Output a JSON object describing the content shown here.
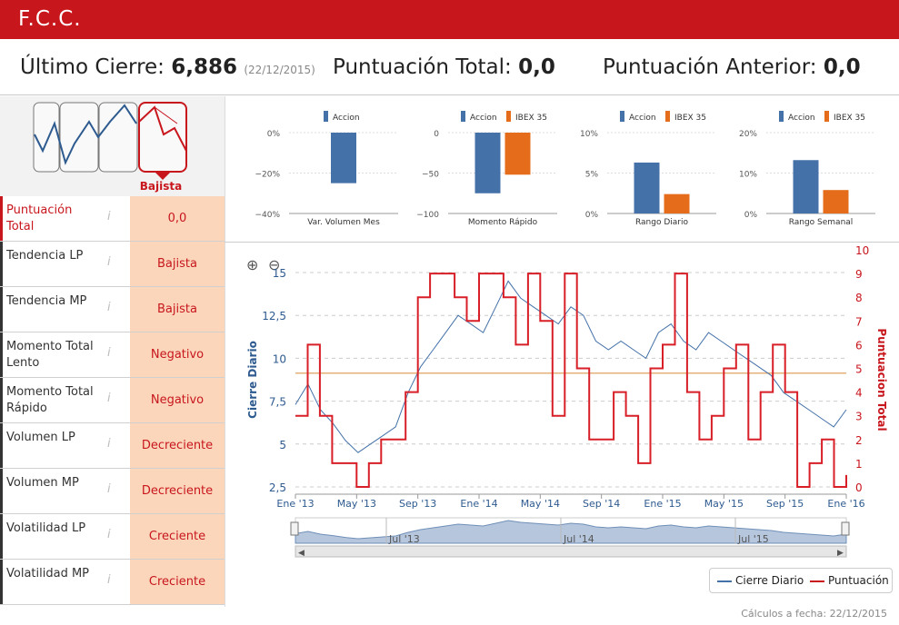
{
  "header": {
    "title": "F.C.C."
  },
  "kpis": {
    "ultimo_label": "Último Cierre: ",
    "ultimo_value": "6,886",
    "ultimo_date": "(22/12/2015)",
    "puntuacion_label": "Puntuación Total: ",
    "puntuacion_value": "0,0",
    "anterior_label": "Puntuación Anterior: ",
    "anterior_value": "0,0"
  },
  "trend": {
    "label": "Bajista"
  },
  "rows": [
    {
      "label": "Puntuación Total",
      "value": "0,0",
      "highlight": true
    },
    {
      "label": "Tendencia LP",
      "value": "Bajista"
    },
    {
      "label": "Tendencia MP",
      "value": "Bajista"
    },
    {
      "label": "Momento Total Lento",
      "value": "Negativo"
    },
    {
      "label": "Momento Total Rápido",
      "value": "Negativo"
    },
    {
      "label": "Volumen LP",
      "value": "Decreciente"
    },
    {
      "label": "Volumen MP",
      "value": "Decreciente"
    },
    {
      "label": "Volatilidad LP",
      "value": "Creciente"
    },
    {
      "label": "Volatilidad MP",
      "value": "Creciente"
    }
  ],
  "info_glyph": "i",
  "colors": {
    "accent": "#c8161d",
    "accion": "#4471a8",
    "ibex": "#e56c1a",
    "valbg": "#fbd6bb"
  },
  "chart_data": [
    {
      "type": "bar",
      "title": "Var. Volumen Mes",
      "series": [
        {
          "name": "Accion",
          "values": [
            -25
          ]
        }
      ],
      "yticks": [
        "0%",
        "−20%",
        "−40%"
      ],
      "ylim": [
        -40,
        0
      ]
    },
    {
      "type": "bar",
      "title": "Momento Rápido",
      "series": [
        {
          "name": "Accion",
          "values": [
            -75
          ]
        },
        {
          "name": "IBEX 35",
          "values": [
            -52
          ]
        }
      ],
      "yticks": [
        "0",
        "−50",
        "−100"
      ],
      "ylim": [
        -100,
        0
      ]
    },
    {
      "type": "bar",
      "title": "Rango Diario",
      "series": [
        {
          "name": "Accion",
          "values": [
            6.3
          ]
        },
        {
          "name": "IBEX 35",
          "values": [
            2.4
          ]
        }
      ],
      "yticks": [
        "10%",
        "5%",
        "0%"
      ],
      "ylim": [
        0,
        10
      ]
    },
    {
      "type": "bar",
      "title": "Rango Semanal",
      "series": [
        {
          "name": "Accion",
          "values": [
            13.2
          ]
        },
        {
          "name": "IBEX 35",
          "values": [
            5.8
          ]
        }
      ],
      "yticks": [
        "20%",
        "10%",
        "0%"
      ],
      "ylim": [
        0,
        20
      ]
    },
    {
      "type": "line",
      "xlabels": [
        "Ene '13",
        "May '13",
        "Sep '13",
        "Ene '14",
        "May '14",
        "Sep '14",
        "Ene '15",
        "May '15",
        "Sep '15",
        "Ene '16"
      ],
      "ylabel": "Cierre Diario",
      "y2label": "Puntuacion Total",
      "yticks": [
        "15",
        "12,5",
        "10",
        "7,5",
        "5",
        "2,5"
      ],
      "y2ticks": [
        "10",
        "9",
        "8",
        "7",
        "6",
        "5",
        "4",
        "3",
        "2",
        "1",
        "0"
      ],
      "series": [
        {
          "name": "Cierre Diario",
          "values": [
            7.3,
            8.5,
            7.0,
            6.2,
            5.2,
            4.5,
            5.0,
            5.5,
            6.0,
            8.0,
            9.5,
            10.5,
            11.5,
            12.5,
            12.0,
            11.5,
            13.0,
            14.5,
            13.5,
            13.0,
            12.5,
            12.0,
            13.0,
            12.5,
            11.0,
            10.5,
            11.0,
            10.5,
            10.0,
            11.5,
            12.0,
            11.0,
            10.5,
            11.5,
            11.0,
            10.5,
            10.0,
            9.5,
            9.0,
            8.0,
            7.5,
            7.0,
            6.5,
            6.0,
            7.0
          ]
        },
        {
          "name": "Puntuación",
          "values": [
            3,
            6,
            3,
            1,
            1,
            0,
            1,
            2,
            2,
            4,
            8,
            9,
            9,
            8,
            7,
            9,
            9,
            8,
            6,
            9,
            7,
            3,
            9,
            5,
            2,
            2,
            4,
            3,
            1,
            5,
            6,
            9,
            4,
            2,
            3,
            5,
            6,
            2,
            4,
            6,
            4,
            0,
            1,
            2,
            0,
            0.5
          ]
        }
      ],
      "hline": 4.8,
      "navigator_labels": [
        "Jul '13",
        "Jul '14",
        "Jul '15"
      ],
      "legend": [
        "Cierre Diario",
        "Puntuación"
      ]
    }
  ],
  "footer": "Cálculos a fecha: 22/12/2015"
}
